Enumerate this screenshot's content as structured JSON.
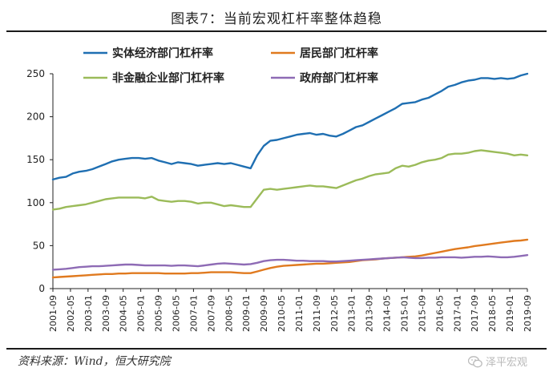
{
  "title": "图表7：当前宏观杠杆率整体趋稳",
  "source": "资料来源：Wind，恒大研究院",
  "watermark": "泽平宏观",
  "colors": {
    "real_economy": "#1f6fb2",
    "household": "#e07a1f",
    "nonfinancial_corp": "#9bbb59",
    "government": "#8e6bb5"
  },
  "chart_data": {
    "type": "line",
    "ylim": [
      0,
      250
    ],
    "yticks": [
      0,
      50,
      100,
      150,
      200,
      250
    ],
    "xticks": [
      "2001-09",
      "2002-05",
      "2003-01",
      "2003-09",
      "2004-05",
      "2005-01",
      "2005-09",
      "2006-05",
      "2007-01",
      "2007-09",
      "2008-05",
      "2009-01",
      "2009-09",
      "2010-05",
      "2011-01",
      "2011-09",
      "2012-05",
      "2013-01",
      "2013-09",
      "2014-05",
      "2015-01",
      "2015-09",
      "2016-05",
      "2017-01",
      "2017-09",
      "2018-05",
      "2019-01",
      "2019-09"
    ],
    "x": [
      "2001-09",
      "2001-12",
      "2002-03",
      "2002-06",
      "2002-09",
      "2002-12",
      "2003-03",
      "2003-06",
      "2003-09",
      "2003-12",
      "2004-03",
      "2004-06",
      "2004-09",
      "2004-12",
      "2005-03",
      "2005-06",
      "2005-09",
      "2005-12",
      "2006-03",
      "2006-06",
      "2006-09",
      "2006-12",
      "2007-03",
      "2007-06",
      "2007-09",
      "2007-12",
      "2008-03",
      "2008-06",
      "2008-09",
      "2008-12",
      "2009-03",
      "2009-06",
      "2009-09",
      "2009-12",
      "2010-03",
      "2010-06",
      "2010-09",
      "2010-12",
      "2011-03",
      "2011-06",
      "2011-09",
      "2011-12",
      "2012-03",
      "2012-06",
      "2012-09",
      "2012-12",
      "2013-03",
      "2013-06",
      "2013-09",
      "2013-12",
      "2014-03",
      "2014-06",
      "2014-09",
      "2014-12",
      "2015-03",
      "2015-06",
      "2015-09",
      "2015-12",
      "2016-03",
      "2016-06",
      "2016-09",
      "2016-12",
      "2017-03",
      "2017-06",
      "2017-09",
      "2017-12",
      "2018-03",
      "2018-06",
      "2018-09",
      "2018-12",
      "2019-03",
      "2019-06",
      "2019-09"
    ],
    "series": [
      {
        "name": "实体经济部门杠杆率",
        "key": "real_economy",
        "values": [
          127,
          129,
          130,
          134,
          136,
          137,
          139,
          142,
          145,
          148,
          150,
          151,
          152,
          152,
          151,
          152,
          149,
          147,
          145,
          147,
          146,
          145,
          143,
          144,
          145,
          146,
          145,
          146,
          144,
          142,
          140,
          155,
          166,
          172,
          173,
          175,
          177,
          179,
          180,
          181,
          179,
          180,
          178,
          177,
          180,
          184,
          188,
          190,
          194,
          198,
          202,
          206,
          210,
          215,
          216,
          217,
          220,
          222,
          226,
          230,
          235,
          237,
          240,
          242,
          243,
          245,
          245,
          244,
          245,
          244,
          245,
          248,
          250
        ]
      },
      {
        "name": "居民部门杠杆率",
        "key": "household",
        "values": [
          13,
          13.5,
          14,
          14.5,
          15,
          15.5,
          16,
          16.5,
          17,
          17,
          17.5,
          17.5,
          18,
          18,
          18,
          18,
          18,
          17.5,
          17.5,
          17.5,
          17.5,
          18,
          18,
          18.5,
          19,
          19,
          19,
          19,
          18.5,
          18,
          18,
          20,
          22,
          24,
          25.5,
          26.5,
          27,
          27.5,
          28,
          28.5,
          29,
          29,
          29.5,
          30,
          30.5,
          31,
          32,
          33,
          33.5,
          34,
          35,
          35.5,
          36,
          36.5,
          37,
          37.5,
          38.5,
          40,
          41.5,
          43,
          44.5,
          46,
          47,
          48,
          49.5,
          50.5,
          51.5,
          52.5,
          53.5,
          54.5,
          55.5,
          56,
          57
        ]
      },
      {
        "name": "非金融企业部门杠杆率",
        "key": "nonfinancial_corp",
        "values": [
          92,
          93,
          95,
          96,
          97,
          98,
          100,
          102,
          104,
          105,
          106,
          106,
          106,
          106,
          105,
          107,
          103,
          102,
          101,
          102,
          102,
          101,
          99,
          100,
          100,
          98,
          96,
          97,
          96,
          95,
          95,
          105,
          115,
          116,
          115,
          116,
          117,
          118,
          119,
          120,
          119,
          119,
          118,
          117,
          120,
          123,
          126,
          128,
          131,
          133,
          134,
          135,
          140,
          143,
          142,
          144,
          147,
          149,
          150,
          152,
          156,
          157,
          157,
          158,
          160,
          161,
          160,
          159,
          158,
          157,
          155,
          156,
          155
        ]
      },
      {
        "name": "政府部门杠杆率",
        "key": "government",
        "values": [
          22,
          22.5,
          23,
          24,
          25,
          25.5,
          26,
          26,
          26.5,
          27,
          27.5,
          28,
          28,
          27.5,
          27,
          27,
          27,
          27,
          26.5,
          27,
          27,
          26.5,
          26,
          27,
          28,
          29,
          29.5,
          29,
          28.5,
          28,
          28.5,
          30,
          32,
          33,
          33.5,
          33.5,
          33,
          32.5,
          32.5,
          32,
          32,
          32,
          31.5,
          31.5,
          32,
          32.5,
          33,
          33.5,
          34,
          34.5,
          35,
          35.5,
          36,
          36.5,
          36,
          35.5,
          35.5,
          36,
          36,
          36.5,
          36.5,
          36.5,
          36,
          36.5,
          37,
          37,
          37.5,
          37,
          36.5,
          36.5,
          37,
          38,
          39
        ]
      }
    ]
  }
}
